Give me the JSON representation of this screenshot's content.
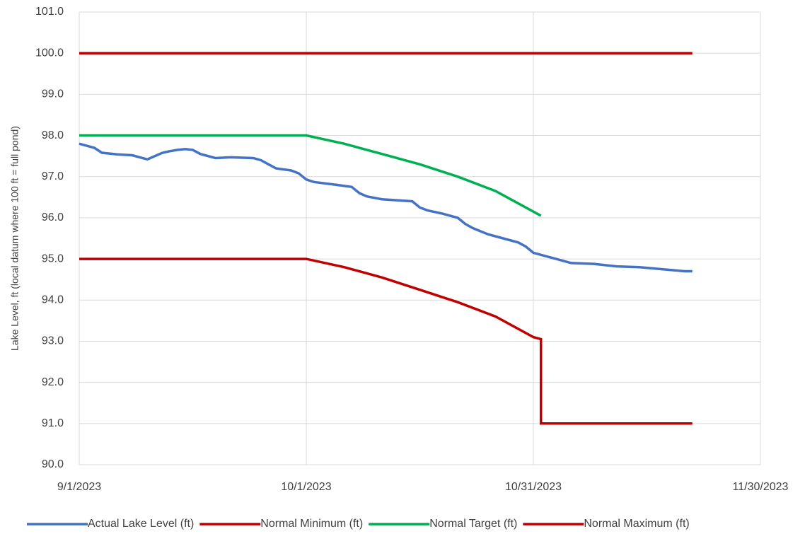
{
  "chart_data": {
    "type": "line",
    "y_label": "Lake Level, ft (local datum where 100 ft = full pond)",
    "xlim": [
      "9/1/2023",
      "11/30/2023"
    ],
    "xticks": [
      "9/1/2023",
      "10/1/2023",
      "10/31/2023",
      "11/30/2023"
    ],
    "ylim": [
      90,
      101
    ],
    "yticks": [
      {
        "value": 90,
        "label": "90.0"
      },
      {
        "value": 91,
        "label": "91.0"
      },
      {
        "value": 92,
        "label": "92.0"
      },
      {
        "value": 93,
        "label": "93.0"
      },
      {
        "value": 94,
        "label": "94.0"
      },
      {
        "value": 95,
        "label": "95.0"
      },
      {
        "value": 96,
        "label": "96.0"
      },
      {
        "value": 97,
        "label": "97.0"
      },
      {
        "value": 98,
        "label": "98.0"
      },
      {
        "value": 99,
        "label": "99.0"
      },
      {
        "value": 100,
        "label": "100.0"
      },
      {
        "value": 101,
        "label": "101.0"
      }
    ],
    "grid": true,
    "legend": "bottom",
    "series": [
      {
        "name": "Actual Lake Level (ft)",
        "color": "#4472c4",
        "x": [
          "9/1/2023",
          "9/3/2023",
          "9/4/2023",
          "9/6/2023",
          "9/8/2023",
          "9/9/2023",
          "9/10/2023",
          "9/11/2023",
          "9/12/2023",
          "9/13/2023",
          "9/14/2023",
          "9/15/2023",
          "9/16/2023",
          "9/17/2023",
          "9/19/2023",
          "9/21/2023",
          "9/24/2023",
          "9/25/2023",
          "9/26/2023",
          "9/27/2023",
          "9/29/2023",
          "9/30/2023",
          "10/1/2023",
          "10/2/2023",
          "10/5/2023",
          "10/7/2023",
          "10/8/2023",
          "10/9/2023",
          "10/11/2023",
          "10/15/2023",
          "10/16/2023",
          "10/17/2023",
          "10/19/2023",
          "10/21/2023",
          "10/22/2023",
          "10/23/2023",
          "10/25/2023",
          "10/27/2023",
          "10/29/2023",
          "10/30/2023",
          "10/31/2023",
          "11/1/2023",
          "11/3/2023",
          "11/5/2023",
          "11/8/2023",
          "11/11/2023",
          "11/14/2023",
          "11/17/2023",
          "11/20/2023",
          "11/21/2023"
        ],
        "values": [
          97.8,
          97.7,
          97.58,
          97.54,
          97.52,
          97.47,
          97.42,
          97.5,
          97.58,
          97.62,
          97.65,
          97.67,
          97.65,
          97.55,
          97.45,
          97.47,
          97.45,
          97.4,
          97.3,
          97.2,
          97.15,
          97.08,
          96.93,
          96.87,
          96.8,
          96.75,
          96.6,
          96.52,
          96.45,
          96.4,
          96.25,
          96.18,
          96.1,
          96.0,
          95.85,
          95.75,
          95.6,
          95.5,
          95.4,
          95.3,
          95.15,
          95.1,
          95.0,
          94.9,
          94.88,
          94.82,
          94.8,
          94.75,
          94.7,
          94.7
        ]
      },
      {
        "name": "Normal Minimum (ft)",
        "color": "#c00000",
        "x": [
          "9/1/2023",
          "10/1/2023",
          "10/6/2023",
          "10/11/2023",
          "10/16/2023",
          "10/21/2023",
          "10/26/2023",
          "10/31/2023",
          "11/1/2023",
          "11/1/2023",
          "11/21/2023"
        ],
        "values": [
          95,
          95,
          94.8,
          94.55,
          94.25,
          93.95,
          93.6,
          93.1,
          93.05,
          91,
          91
        ]
      },
      {
        "name": "Normal Target (ft)",
        "color": "#00b050",
        "x": [
          "9/1/2023",
          "10/1/2023",
          "10/6/2023",
          "10/11/2023",
          "10/16/2023",
          "10/21/2023",
          "10/26/2023",
          "10/31/2023",
          "11/1/2023"
        ],
        "values": [
          98,
          98,
          97.8,
          97.55,
          97.3,
          97.0,
          96.65,
          96.15,
          96.05
        ]
      },
      {
        "name": "Normal Maximum (ft)",
        "color": "#c00000",
        "x": [
          "9/1/2023",
          "11/21/2023"
        ],
        "values": [
          100,
          100
        ]
      }
    ]
  }
}
